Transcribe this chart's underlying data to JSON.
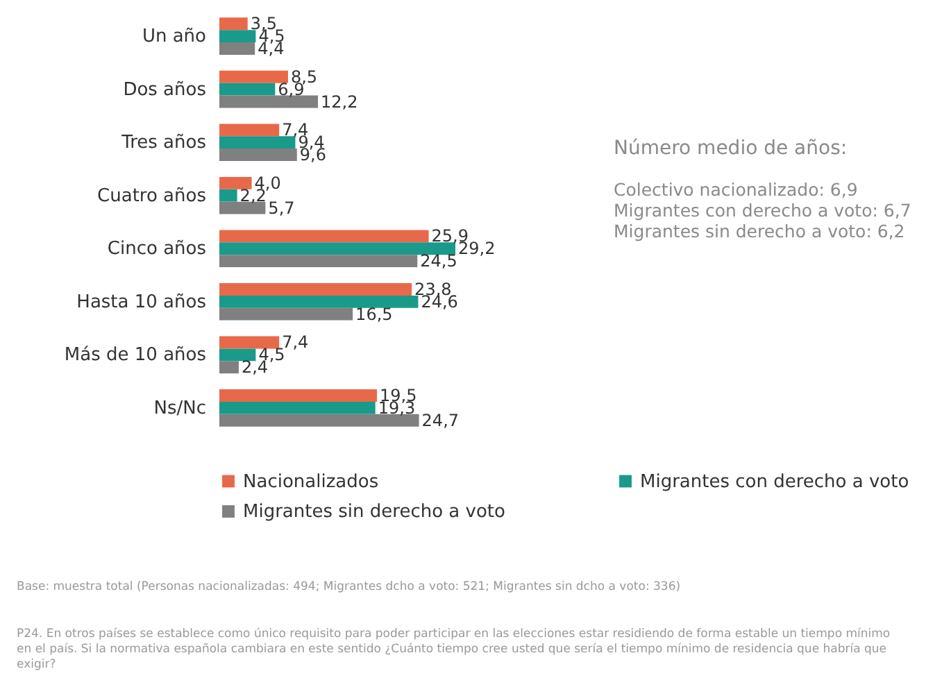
{
  "chart_data": {
    "type": "bar",
    "orientation": "horizontal",
    "data_labels": true,
    "legend": "bottom",
    "categories": [
      "Un año",
      "Dos años",
      "Tres años",
      "Cuatro años",
      "Cinco años",
      "Hasta 10 años",
      "Más de 10 años",
      "Ns/Nc"
    ],
    "series": [
      {
        "name": "Nacionalizados",
        "color": "#e8694a",
        "values": [
          3.5,
          8.5,
          7.4,
          4.0,
          25.9,
          23.8,
          7.4,
          19.5
        ],
        "value_labels": [
          "3,5",
          "8,5",
          "7,4",
          "4,0",
          "25,9",
          "23,8",
          "7,4",
          "19,5"
        ]
      },
      {
        "name": "Migrantes con derecho a voto",
        "color": "#1a9a8a",
        "values": [
          4.5,
          6.9,
          9.4,
          2.2,
          29.2,
          24.6,
          4.5,
          19.3
        ],
        "value_labels": [
          "4,5",
          "6,9",
          "9,4",
          "2,2",
          "29,2",
          "24,6",
          "4,5",
          "19,3"
        ]
      },
      {
        "name": "Migrantes sin derecho a voto",
        "color": "#808080",
        "values": [
          4.4,
          12.2,
          9.6,
          5.7,
          24.5,
          16.5,
          2.4,
          24.7
        ],
        "value_labels": [
          "4,4",
          "12,2",
          "9,6",
          "5,7",
          "24,5",
          "16,5",
          "2,4",
          "24,7"
        ]
      }
    ],
    "annotations": [
      "Número medio de años:",
      "Colectivo nacionalizado: 6,9",
      "Migrantes con derecho a voto: 6,7",
      "Migrantes sin derecho a voto: 6,2",
      "Base: muestra total (Personas nacionalizadas: 494; Migrantes dcho a voto: 521; Migrantes sin dcho a voto: 336)",
      "P24. En otros países se establece como único requisito para poder participar en las elecciones estar residiendo de forma estable un tiempo mínimo en el país. Si la normativa española cambiara en este sentido ¿Cuánto tiempo cree usted que sería el tiempo mínimo de residencia que habría que exigir?"
    ]
  }
}
